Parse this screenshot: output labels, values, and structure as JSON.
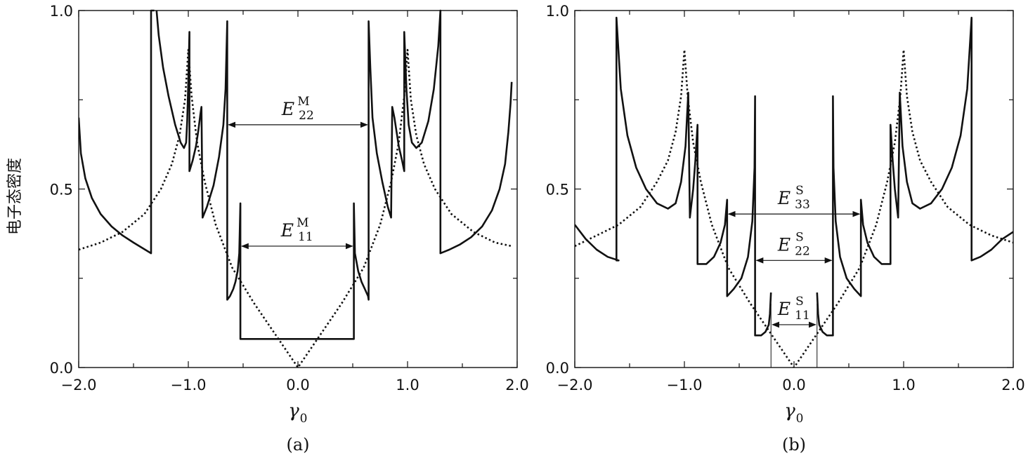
{
  "chart_data": [
    {
      "type": "line",
      "panel": "a",
      "label": "(a)",
      "xlabel": "γ",
      "xlabel_sub": "0",
      "ylabel": "电子态密度",
      "xlim": [
        -2.0,
        2.0
      ],
      "ylim": [
        0.0,
        1.0
      ],
      "xticks": [
        -2.0,
        -1.0,
        0.0,
        1.0,
        2.0
      ],
      "xtick_labels": [
        "−2.0",
        "−1.0",
        "0.0",
        "1.0",
        "2.0"
      ],
      "yticks": [
        0.0,
        0.5,
        1.0
      ],
      "ytick_labels": [
        "0.0",
        "0.5",
        "1.0"
      ],
      "series": [
        {
          "style": "solid",
          "points": [
            [
              -2.0,
              0.7
            ],
            [
              -1.98,
              0.6
            ],
            [
              -1.94,
              0.53
            ],
            [
              -1.88,
              0.475
            ],
            [
              -1.8,
              0.43
            ],
            [
              -1.7,
              0.395
            ],
            [
              -1.6,
              0.37
            ],
            [
              -1.5,
              0.35
            ],
            [
              -1.42,
              0.335
            ],
            [
              -1.34,
              0.32
            ],
            [
              -1.34,
              1.0
            ],
            [
              -1.31,
              1.0
            ],
            [
              null,
              null
            ],
            [
              -1.29,
              1.0
            ],
            [
              -1.27,
              0.93
            ],
            [
              -1.23,
              0.84
            ],
            [
              -1.18,
              0.76
            ],
            [
              -1.12,
              0.68
            ],
            [
              -1.07,
              0.63
            ],
            [
              -1.04,
              0.615
            ],
            [
              -1.02,
              0.63
            ],
            [
              -1.01,
              0.69
            ],
            [
              -1.0,
              0.8
            ],
            [
              -0.99,
              0.94
            ],
            [
              -0.99,
              0.55
            ],
            [
              -0.96,
              0.58
            ],
            [
              -0.93,
              0.62
            ],
            [
              -0.91,
              0.66
            ],
            [
              -0.89,
              0.71
            ],
            [
              -0.88,
              0.73
            ],
            [
              -0.87,
              0.42
            ],
            [
              -0.83,
              0.45
            ],
            [
              -0.77,
              0.51
            ],
            [
              -0.72,
              0.59
            ],
            [
              -0.68,
              0.68
            ],
            [
              -0.66,
              0.78
            ],
            [
              -0.645,
              0.97
            ],
            [
              -0.645,
              0.19
            ],
            [
              -0.62,
              0.2
            ],
            [
              -0.59,
              0.22
            ],
            [
              -0.57,
              0.24
            ],
            [
              -0.55,
              0.27
            ],
            [
              -0.535,
              0.32
            ],
            [
              -0.525,
              0.46
            ],
            [
              -0.525,
              0.08
            ],
            [
              0.51,
              0.08
            ],
            [
              0.51,
              0.46
            ],
            [
              0.52,
              0.32
            ],
            [
              0.55,
              0.27
            ],
            [
              0.58,
              0.24
            ],
            [
              0.61,
              0.22
            ],
            [
              0.64,
              0.2
            ],
            [
              0.645,
              0.19
            ],
            [
              0.645,
              0.97
            ],
            [
              0.66,
              0.84
            ],
            [
              0.68,
              0.7
            ],
            [
              0.72,
              0.6
            ],
            [
              0.77,
              0.52
            ],
            [
              0.82,
              0.45
            ],
            [
              0.85,
              0.42
            ],
            [
              0.86,
              0.73
            ],
            [
              0.88,
              0.7
            ],
            [
              0.9,
              0.66
            ],
            [
              0.92,
              0.62
            ],
            [
              0.95,
              0.58
            ],
            [
              0.97,
              0.55
            ],
            [
              0.97,
              0.94
            ],
            [
              0.99,
              0.78
            ],
            [
              1.01,
              0.68
            ],
            [
              1.04,
              0.63
            ],
            [
              1.08,
              0.615
            ],
            [
              1.13,
              0.63
            ],
            [
              1.19,
              0.69
            ],
            [
              1.24,
              0.78
            ],
            [
              1.28,
              0.9
            ],
            [
              1.3,
              1.0
            ],
            [
              1.3,
              0.32
            ],
            [
              1.38,
              0.33
            ],
            [
              1.48,
              0.345
            ],
            [
              1.58,
              0.365
            ],
            [
              1.68,
              0.395
            ],
            [
              1.77,
              0.44
            ],
            [
              1.84,
              0.5
            ],
            [
              1.89,
              0.57
            ],
            [
              1.92,
              0.66
            ],
            [
              1.94,
              0.74
            ],
            [
              1.95,
              0.8
            ]
          ]
        },
        {
          "style": "dotted",
          "points": [
            [
              -2.0,
              0.33
            ],
            [
              -1.8,
              0.35
            ],
            [
              -1.6,
              0.38
            ],
            [
              -1.4,
              0.43
            ],
            [
              -1.25,
              0.5
            ],
            [
              -1.15,
              0.57
            ],
            [
              -1.08,
              0.65
            ],
            [
              -1.03,
              0.75
            ],
            [
              -1.0,
              0.89
            ],
            [
              -0.97,
              0.76
            ],
            [
              -0.92,
              0.63
            ],
            [
              -0.85,
              0.52
            ],
            [
              -0.75,
              0.4
            ],
            [
              -0.6,
              0.28
            ],
            [
              -0.4,
              0.18
            ],
            [
              -0.2,
              0.09
            ],
            [
              0.0,
              0.0
            ],
            [
              0.2,
              0.09
            ],
            [
              0.4,
              0.18
            ],
            [
              0.6,
              0.28
            ],
            [
              0.75,
              0.4
            ],
            [
              0.85,
              0.52
            ],
            [
              0.92,
              0.63
            ],
            [
              0.97,
              0.76
            ],
            [
              1.0,
              0.89
            ],
            [
              1.03,
              0.75
            ],
            [
              1.08,
              0.65
            ],
            [
              1.15,
              0.57
            ],
            [
              1.25,
              0.5
            ],
            [
              1.4,
              0.43
            ],
            [
              1.6,
              0.38
            ],
            [
              1.8,
              0.35
            ],
            [
              1.95,
              0.34
            ]
          ]
        }
      ],
      "annotations": [
        {
          "main": "E",
          "sup": "M",
          "sub": "22",
          "x1": -0.645,
          "x2": 0.645,
          "y": 0.68
        },
        {
          "main": "E",
          "sup": "M",
          "sub": "11",
          "x1": -0.525,
          "x2": 0.51,
          "y": 0.34
        }
      ]
    },
    {
      "type": "line",
      "panel": "b",
      "label": "(b)",
      "xlabel": "γ",
      "xlabel_sub": "0",
      "xlim": [
        -2.0,
        2.0
      ],
      "ylim": [
        0.0,
        1.0
      ],
      "xticks": [
        -2.0,
        -1.0,
        0.0,
        1.0,
        2.0
      ],
      "xtick_labels": [
        "−2.0",
        "−1.0",
        "0.0",
        "1.0",
        "2.0"
      ],
      "yticks": [
        0.0,
        0.5,
        1.0
      ],
      "ytick_labels": [
        "0.0",
        "0.5",
        "1.0"
      ],
      "series": [
        {
          "style": "solid",
          "points": [
            [
              -2.0,
              0.4
            ],
            [
              -1.9,
              0.36
            ],
            [
              -1.8,
              0.33
            ],
            [
              -1.7,
              0.31
            ],
            [
              -1.6,
              0.3
            ],
            [
              -1.62,
              0.3
            ],
            [
              -1.62,
              0.98
            ],
            [
              -1.58,
              0.78
            ],
            [
              -1.52,
              0.65
            ],
            [
              -1.44,
              0.56
            ],
            [
              -1.35,
              0.5
            ],
            [
              -1.25,
              0.46
            ],
            [
              -1.15,
              0.445
            ],
            [
              -1.08,
              0.46
            ],
            [
              -1.03,
              0.52
            ],
            [
              -0.99,
              0.62
            ],
            [
              -0.965,
              0.77
            ],
            [
              -0.95,
              0.42
            ],
            [
              -0.92,
              0.5
            ],
            [
              -0.9,
              0.58
            ],
            [
              -0.88,
              0.68
            ],
            [
              -0.88,
              0.29
            ],
            [
              -0.8,
              0.29
            ],
            [
              -0.73,
              0.31
            ],
            [
              -0.67,
              0.35
            ],
            [
              -0.63,
              0.4
            ],
            [
              -0.61,
              0.47
            ],
            [
              -0.61,
              0.2
            ],
            [
              -0.55,
              0.22
            ],
            [
              -0.48,
              0.25
            ],
            [
              -0.42,
              0.31
            ],
            [
              -0.38,
              0.41
            ],
            [
              -0.36,
              0.56
            ],
            [
              -0.355,
              0.76
            ],
            [
              -0.355,
              0.09
            ],
            [
              -0.3,
              0.09
            ],
            [
              -0.26,
              0.1
            ],
            [
              -0.23,
              0.12
            ],
            [
              -0.22,
              0.15
            ],
            [
              -0.21,
              0.21
            ],
            [
              null,
              null
            ],
            [
              0.21,
              0.21
            ],
            [
              0.22,
              0.15
            ],
            [
              0.23,
              0.12
            ],
            [
              0.26,
              0.1
            ],
            [
              0.3,
              0.09
            ],
            [
              0.355,
              0.09
            ],
            [
              0.355,
              0.76
            ],
            [
              0.36,
              0.56
            ],
            [
              0.38,
              0.41
            ],
            [
              0.42,
              0.31
            ],
            [
              0.48,
              0.25
            ],
            [
              0.55,
              0.22
            ],
            [
              0.61,
              0.2
            ],
            [
              0.61,
              0.47
            ],
            [
              0.63,
              0.4
            ],
            [
              0.67,
              0.35
            ],
            [
              0.73,
              0.31
            ],
            [
              0.8,
              0.29
            ],
            [
              0.88,
              0.29
            ],
            [
              0.88,
              0.68
            ],
            [
              0.9,
              0.58
            ],
            [
              0.92,
              0.5
            ],
            [
              0.95,
              0.42
            ],
            [
              0.965,
              0.77
            ],
            [
              0.99,
              0.62
            ],
            [
              1.03,
              0.52
            ],
            [
              1.08,
              0.46
            ],
            [
              1.15,
              0.445
            ],
            [
              1.25,
              0.46
            ],
            [
              1.35,
              0.5
            ],
            [
              1.44,
              0.56
            ],
            [
              1.52,
              0.65
            ],
            [
              1.58,
              0.78
            ],
            [
              1.62,
              0.98
            ],
            [
              1.62,
              0.3
            ],
            [
              1.7,
              0.31
            ],
            [
              1.8,
              0.33
            ],
            [
              1.9,
              0.36
            ],
            [
              2.0,
              0.38
            ]
          ]
        },
        {
          "style": "dotted",
          "points": [
            [
              -2.0,
              0.34
            ],
            [
              -1.8,
              0.37
            ],
            [
              -1.6,
              0.4
            ],
            [
              -1.4,
              0.45
            ],
            [
              -1.25,
              0.52
            ],
            [
              -1.15,
              0.58
            ],
            [
              -1.08,
              0.66
            ],
            [
              -1.03,
              0.76
            ],
            [
              -1.0,
              0.89
            ],
            [
              -0.97,
              0.76
            ],
            [
              -0.92,
              0.63
            ],
            [
              -0.85,
              0.52
            ],
            [
              -0.75,
              0.4
            ],
            [
              -0.6,
              0.28
            ],
            [
              -0.4,
              0.18
            ],
            [
              -0.2,
              0.09
            ],
            [
              0.0,
              0.0
            ],
            [
              0.2,
              0.09
            ],
            [
              0.4,
              0.18
            ],
            [
              0.6,
              0.28
            ],
            [
              0.75,
              0.4
            ],
            [
              0.85,
              0.52
            ],
            [
              0.92,
              0.63
            ],
            [
              0.97,
              0.76
            ],
            [
              1.0,
              0.89
            ],
            [
              1.03,
              0.76
            ],
            [
              1.08,
              0.66
            ],
            [
              1.15,
              0.58
            ],
            [
              1.25,
              0.52
            ],
            [
              1.4,
              0.45
            ],
            [
              1.6,
              0.4
            ],
            [
              1.8,
              0.37
            ],
            [
              2.0,
              0.35
            ]
          ]
        }
      ],
      "annotations": [
        {
          "main": "E",
          "sup": "S",
          "sub": "33",
          "x1": -0.61,
          "x2": 0.61,
          "y": 0.43
        },
        {
          "main": "E",
          "sup": "S",
          "sub": "22",
          "x1": -0.355,
          "x2": 0.355,
          "y": 0.3
        },
        {
          "main": "E",
          "sup": "S",
          "sub": "11",
          "x1": -0.21,
          "x2": 0.21,
          "y": 0.12,
          "vlines": true
        }
      ]
    }
  ]
}
